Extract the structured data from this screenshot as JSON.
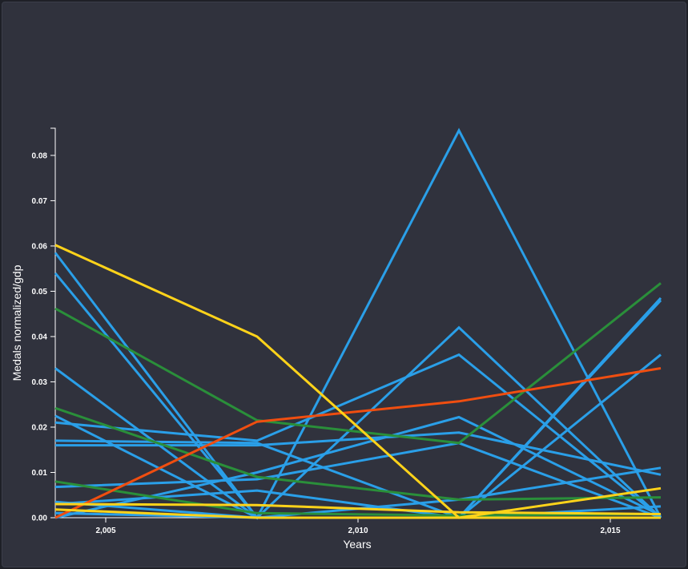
{
  "chart_data": {
    "type": "line",
    "xlabel": "Years",
    "ylabel": "Medals normalized/gdp",
    "xlim": [
      2004,
      2016
    ],
    "ylim": [
      0,
      0.086
    ],
    "x": [
      2004,
      2008,
      2012,
      2016
    ],
    "x_ticks": [
      {
        "value": 2005,
        "label": "2,005"
      },
      {
        "value": 2010,
        "label": "2,010"
      },
      {
        "value": 2015,
        "label": "2,015"
      }
    ],
    "y_ticks": [
      {
        "value": 0,
        "label": "0.00"
      },
      {
        "value": 0.01,
        "label": "0.01"
      },
      {
        "value": 0.02,
        "label": "0.02"
      },
      {
        "value": 0.03,
        "label": "0.03"
      },
      {
        "value": 0.04,
        "label": "0.04"
      },
      {
        "value": 0.05,
        "label": "0.05"
      },
      {
        "value": 0.06,
        "label": "0.06"
      },
      {
        "value": 0.07,
        "label": "0.07"
      },
      {
        "value": 0.08,
        "label": "0.08"
      }
    ],
    "grid": false,
    "legend": "none",
    "colors": {
      "blue": "#2a9fe8",
      "green": "#2a8f3a",
      "orange": "#f04e10",
      "yellow": "#ffd31a",
      "background": "#30323d",
      "axis": "#ffffff"
    },
    "series": [
      {
        "color": "blue",
        "values": [
          0.0585,
          0.0,
          0.0855,
          0.0
        ]
      },
      {
        "color": "blue",
        "values": [
          0.054,
          0.0,
          0.0,
          0.0485
        ]
      },
      {
        "color": "blue",
        "values": [
          0.033,
          0.0,
          0.0,
          0.036
        ]
      },
      {
        "color": "blue",
        "values": [
          0.0225,
          0.0,
          0.042,
          0.0
        ]
      },
      {
        "color": "blue",
        "values": [
          0.021,
          0.017,
          0.036,
          0.0
        ]
      },
      {
        "color": "blue",
        "values": [
          0.017,
          0.0165,
          0.0,
          0.048
        ]
      },
      {
        "color": "blue",
        "values": [
          0.016,
          0.016,
          0.0188,
          0.0095
        ]
      },
      {
        "color": "blue",
        "values": [
          0.0068,
          0.0085,
          0.0165,
          0.0
        ]
      },
      {
        "color": "blue",
        "values": [
          0.003,
          0.006,
          0.0,
          0.0
        ]
      },
      {
        "color": "blue",
        "values": [
          0.0,
          0.01,
          0.0222,
          0.0005
        ]
      },
      {
        "color": "blue",
        "values": [
          0.0035,
          0.0,
          0.004,
          0.011
        ]
      },
      {
        "color": "blue",
        "values": [
          0.001,
          0.0,
          0.0,
          0.0025
        ]
      },
      {
        "color": "green",
        "values": [
          0.0462,
          0.0215,
          0.0165,
          0.0518
        ]
      },
      {
        "color": "green",
        "values": [
          0.0242,
          0.009,
          0.004,
          0.0045
        ]
      },
      {
        "color": "green",
        "values": [
          0.008,
          0.001,
          0.0005,
          0.0008
        ]
      },
      {
        "color": "orange",
        "values": [
          0.0,
          0.0212,
          0.0257,
          0.033
        ]
      },
      {
        "color": "yellow",
        "values": [
          0.0602,
          0.04,
          0.0,
          0.0065
        ]
      },
      {
        "color": "yellow",
        "values": [
          0.003,
          0.0028,
          0.0012,
          0.0008
        ]
      },
      {
        "color": "yellow",
        "values": [
          0.0018,
          0.0,
          0.0,
          0.0
        ]
      }
    ]
  }
}
